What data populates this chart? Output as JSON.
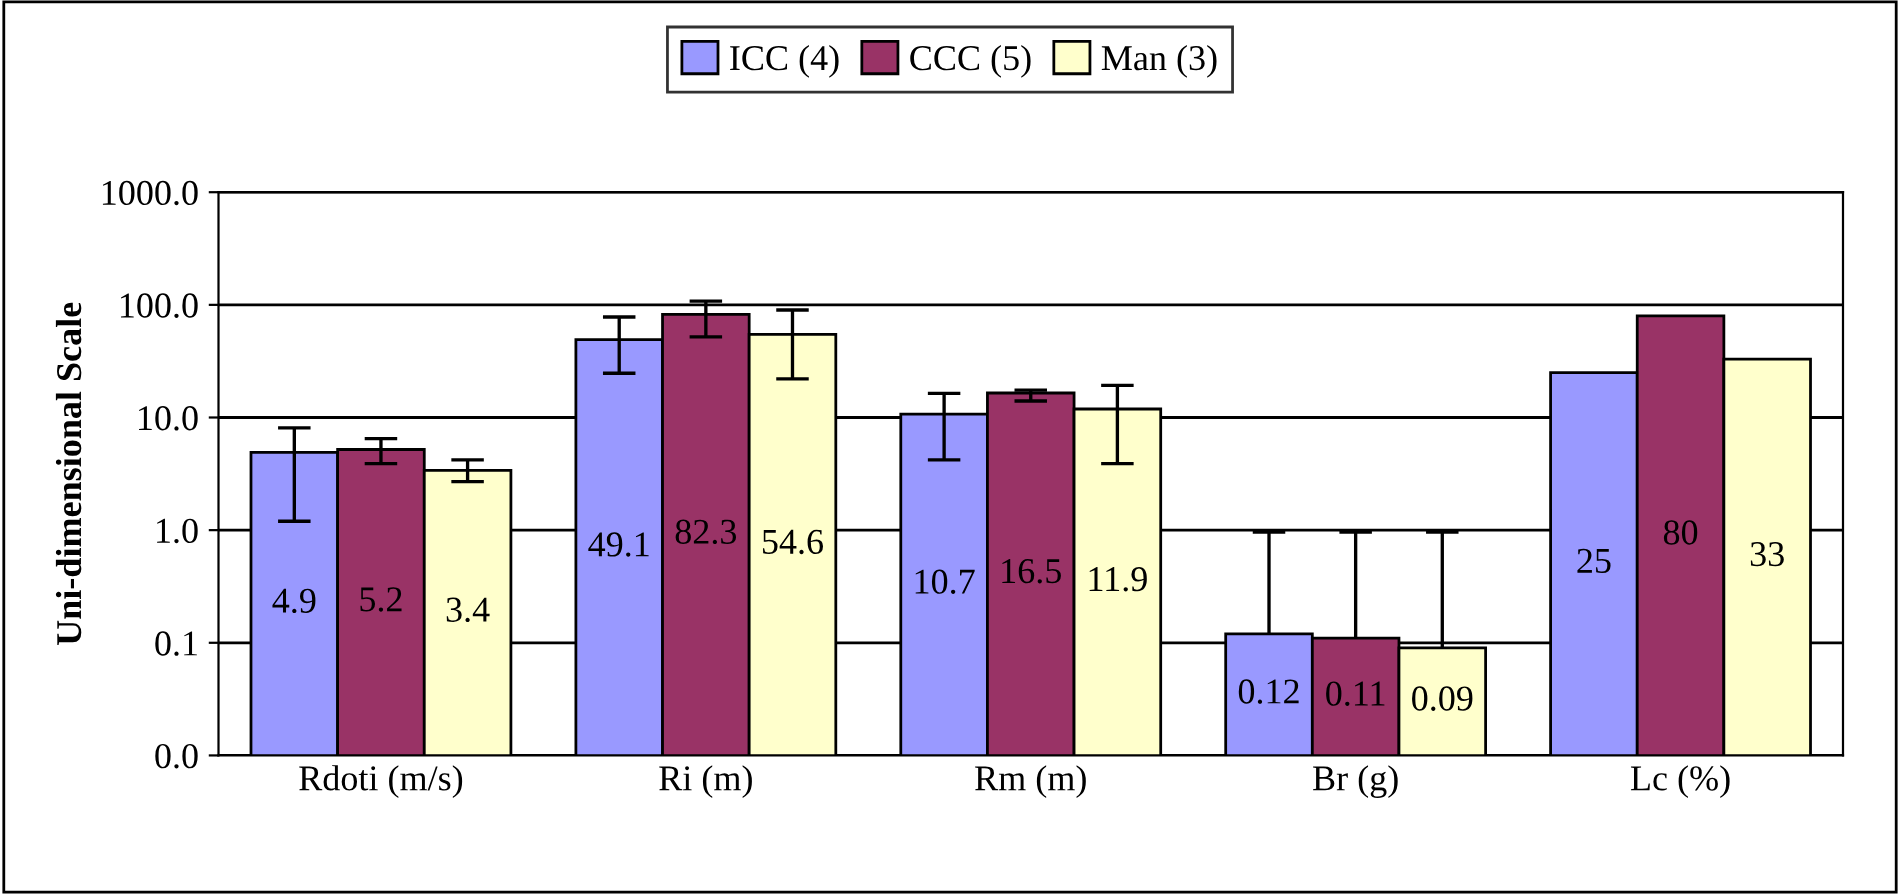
{
  "chart_data": {
    "type": "bar",
    "ylabel": "Uni-dimensional Scale",
    "categories": [
      "Rdoti (m/s)",
      "Ri (m)",
      "Rm (m)",
      "Br (g)",
      "Lc (%)"
    ],
    "series": [
      {
        "name": "ICC (4)",
        "color": "#9999ff",
        "values": [
          4.9,
          49.1,
          10.7,
          0.12,
          25
        ],
        "errors": [
          [
            1.2,
            8.1
          ],
          [
            24.7,
            78
          ],
          [
            4.2,
            16.4
          ],
          [
            0.12,
            0.96
          ],
          null
        ]
      },
      {
        "name": "CCC (5)",
        "color": "#993366",
        "values": [
          5.2,
          82.3,
          16.5,
          0.11,
          80
        ],
        "errors": [
          [
            3.9,
            6.5
          ],
          [
            52,
            108
          ],
          [
            14,
            17.5
          ],
          [
            0.11,
            0.96
          ],
          null
        ]
      },
      {
        "name": "Man (3)",
        "color": "#ffffcc",
        "values": [
          3.4,
          54.6,
          11.9,
          0.09,
          33
        ],
        "errors": [
          [
            2.7,
            4.2
          ],
          [
            22,
            90
          ],
          [
            3.9,
            19.3
          ],
          [
            0.09,
            0.96
          ],
          null
        ]
      }
    ],
    "log": "y",
    "ylim": [
      0.01,
      1000
    ],
    "yticks": [
      {
        "value": 0.01,
        "label": "0.0"
      },
      {
        "value": 0.1,
        "label": "0.1"
      },
      {
        "value": 1,
        "label": "1.0"
      },
      {
        "value": 10,
        "label": "10.0"
      },
      {
        "value": 100,
        "label": "100.0"
      },
      {
        "value": 1000,
        "label": "1000.0"
      }
    ],
    "grid": "y",
    "legend": "top",
    "data_labels": true
  }
}
